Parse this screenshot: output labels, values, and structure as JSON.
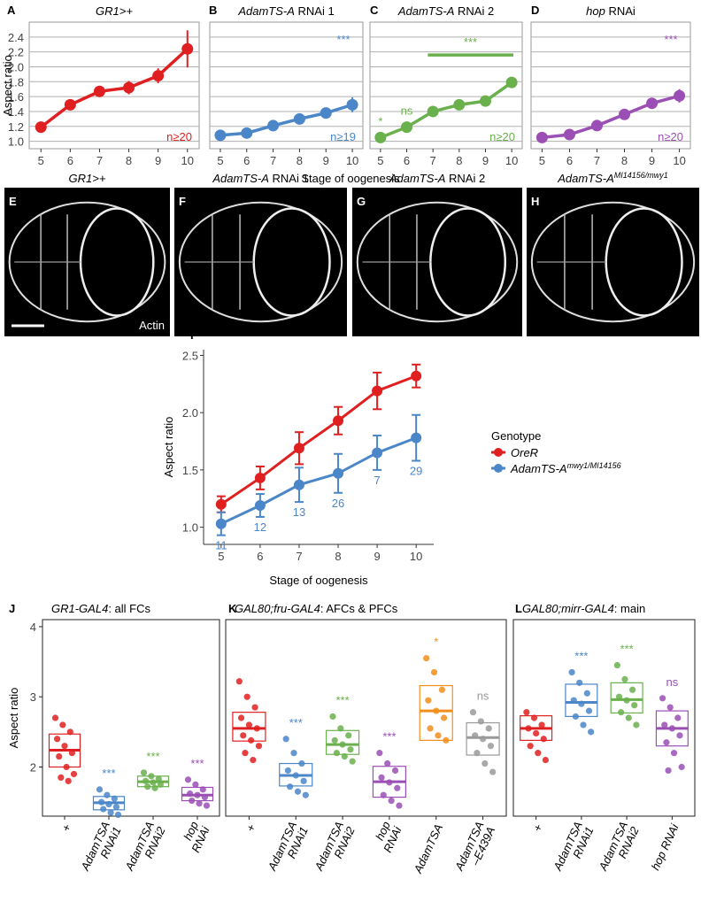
{
  "chart_data": [
    {
      "type": "line",
      "letter": "A",
      "title": [
        {
          "text": "GR1>+",
          "italic": true
        }
      ],
      "ylabel": "Aspect ratio",
      "xlabel": "Stage of oogenesis",
      "x": [
        5,
        6,
        7,
        8,
        9,
        10
      ],
      "xlim": [
        4.6,
        10.4
      ],
      "xticks": [
        5,
        6,
        7,
        8,
        9,
        10
      ],
      "ylim": [
        0.9,
        2.6
      ],
      "yticks": [
        {
          "value": 1,
          "label": "1.0"
        },
        1.2,
        1.4,
        1.6,
        1.8,
        {
          "value": 2,
          "label": "2.0"
        },
        2.2,
        2.4
      ],
      "grid": true,
      "series": [
        {
          "color": "#e02020",
          "values": [
            1.19,
            1.49,
            1.67,
            1.72,
            1.88,
            2.24
          ],
          "errors": [
            0.06,
            0.07,
            0.07,
            0.09,
            0.1,
            0.25
          ]
        }
      ],
      "n_label": "n≥20"
    },
    {
      "type": "line",
      "letter": "B",
      "title": [
        {
          "text": "AdamTS-A",
          "italic": true
        },
        {
          "text": " RNAi 1"
        }
      ],
      "x": [
        5,
        6,
        7,
        8,
        9,
        10
      ],
      "xlim": [
        4.6,
        10.4
      ],
      "xticks": [
        5,
        6,
        7,
        8,
        9,
        10
      ],
      "ylim": [
        0.9,
        2.6
      ],
      "yticks": [
        1,
        1.2,
        1.4,
        1.6,
        1.8,
        2,
        2.2,
        2.4
      ],
      "grid": true,
      "series": [
        {
          "color": "#4a86c8",
          "values": [
            1.08,
            1.11,
            1.21,
            1.3,
            1.38,
            1.49
          ],
          "errors": [
            0.03,
            0.03,
            0.05,
            0.07,
            0.06,
            0.1
          ]
        }
      ],
      "sig": "***",
      "n_label": "n≥19"
    },
    {
      "type": "line",
      "letter": "C",
      "title": [
        {
          "text": "AdamTS-A",
          "italic": true
        },
        {
          "text": " RNAi 2"
        }
      ],
      "x": [
        5,
        6,
        7,
        8,
        9,
        10
      ],
      "xlim": [
        4.6,
        10.4
      ],
      "xticks": [
        5,
        6,
        7,
        8,
        9,
        10
      ],
      "ylim": [
        0.9,
        2.6
      ],
      "yticks": [
        1,
        1.2,
        1.4,
        1.6,
        1.8,
        2,
        2.2,
        2.4
      ],
      "grid": true,
      "series": [
        {
          "color": "#6ab04c",
          "values": [
            1.05,
            1.19,
            1.4,
            1.49,
            1.54,
            1.79
          ],
          "errors": [
            0.03,
            0.05,
            0.04,
            0.04,
            0.04,
            0.05
          ]
        }
      ],
      "point_labels": [
        "*",
        "ns",
        null,
        null,
        null,
        null
      ],
      "sig": "***",
      "sig_bar": true,
      "n_label": "n≥20"
    },
    {
      "type": "line",
      "letter": "D",
      "title": [
        {
          "text": "hop",
          "italic": true
        },
        {
          "text": " RNAi"
        }
      ],
      "x": [
        5,
        6,
        7,
        8,
        9,
        10
      ],
      "xlim": [
        4.6,
        10.4
      ],
      "xticks": [
        5,
        6,
        7,
        8,
        9,
        10
      ],
      "ylim": [
        0.9,
        2.6
      ],
      "yticks": [
        1,
        1.2,
        1.4,
        1.6,
        1.8,
        2,
        2.2,
        2.4
      ],
      "grid": true,
      "series": [
        {
          "color": "#9b4fb5",
          "values": [
            1.05,
            1.09,
            1.21,
            1.36,
            1.51,
            1.61
          ],
          "errors": [
            0.05,
            0.05,
            0.05,
            0.06,
            0.07,
            0.09
          ]
        }
      ],
      "sig": "***",
      "n_label": "n≥20"
    },
    {
      "type": "line",
      "letter": "I",
      "ylabel": "Aspect ratio",
      "xlabel": "Stage of oogenesis",
      "x": [
        5,
        6,
        7,
        8,
        9,
        10
      ],
      "xlim": [
        4.55,
        10.45
      ],
      "xticks": [
        5,
        6,
        7,
        8,
        9,
        10
      ],
      "ylim": [
        0.85,
        2.55
      ],
      "yticks": [
        {
          "value": 1,
          "label": "1.0"
        },
        1.5,
        {
          "value": 2,
          "label": "2.0"
        },
        2.5
      ],
      "grid": false,
      "legend_title": "Genotype",
      "series": [
        {
          "name": "OreR",
          "color": "#e02020",
          "values": [
            1.2,
            1.43,
            1.69,
            1.93,
            2.19,
            2.32
          ],
          "errors": [
            0.07,
            0.1,
            0.14,
            0.12,
            0.16,
            0.1
          ]
        },
        {
          "name": "AdamTS-A",
          "name_sup": "mwy1/MI14156",
          "color": "#4a86c8",
          "values": [
            1.03,
            1.19,
            1.37,
            1.47,
            1.65,
            1.78
          ],
          "errors": [
            0.1,
            0.1,
            0.15,
            0.17,
            0.15,
            0.2
          ],
          "n_labels": [
            11,
            12,
            13,
            26,
            7,
            29
          ]
        }
      ]
    },
    {
      "type": "box",
      "letter": "J",
      "title": [
        {
          "text": "GR1-GAL4",
          "italic": true
        },
        {
          "text": ": all FCs"
        }
      ],
      "ylabel": "Aspect ratio",
      "ylim": [
        1.3,
        4.1
      ],
      "yticks": [
        2,
        3,
        4
      ],
      "categories": [
        [
          "+"
        ],
        [
          "AdamTSA",
          "RNAi1"
        ],
        [
          "AdamTSA",
          "RNAi2"
        ],
        [
          "hop",
          "RNAi"
        ]
      ],
      "colors": [
        "#e02020",
        "#4a86c8",
        "#6ab04c",
        "#9b4fb5"
      ],
      "boxes": [
        {
          "median": 2.24,
          "low": 2.0,
          "high": 2.47
        },
        {
          "median": 1.49,
          "low": 1.39,
          "high": 1.58
        },
        {
          "median": 1.79,
          "low": 1.72,
          "high": 1.87
        },
        {
          "median": 1.6,
          "low": 1.52,
          "high": 1.71
        }
      ],
      "points": [
        [
          2.7,
          2.6,
          2.5,
          2.4,
          2.3,
          2.2,
          2.15,
          2.0,
          1.9,
          1.85,
          1.8
        ],
        [
          1.68,
          1.6,
          1.55,
          1.5,
          1.47,
          1.43,
          1.4,
          1.35,
          1.32
        ],
        [
          1.92,
          1.87,
          1.83,
          1.8,
          1.78,
          1.75,
          1.72,
          1.7
        ],
        [
          1.82,
          1.75,
          1.68,
          1.62,
          1.6,
          1.57,
          1.52,
          1.48,
          1.45
        ]
      ],
      "sig_labels": [
        null,
        "***",
        "***",
        "***"
      ]
    },
    {
      "type": "box",
      "letter": "K",
      "title": [
        {
          "text": "GAL80;fru-GAL4",
          "italic": true
        },
        {
          "text": ": AFCs & PFCs"
        }
      ],
      "ylim": [
        1.3,
        4.1
      ],
      "categories": [
        [
          "+"
        ],
        [
          "AdamTSA",
          "RNAi1"
        ],
        [
          "AdamTSA",
          "RNAi2"
        ],
        [
          "hop",
          "RNAi"
        ],
        [
          "AdamTSA"
        ],
        [
          "AdamTSA",
          "–E439A"
        ]
      ],
      "colors": [
        "#e02020",
        "#4a86c8",
        "#6ab04c",
        "#9b4fb5",
        "#f28e1c",
        "#9a9a9a"
      ],
      "boxes": [
        {
          "median": 2.55,
          "low": 2.37,
          "high": 2.78
        },
        {
          "median": 1.88,
          "low": 1.73,
          "high": 2.05
        },
        {
          "median": 2.32,
          "low": 2.18,
          "high": 2.52
        },
        {
          "median": 1.79,
          "low": 1.57,
          "high": 2.01
        },
        {
          "median": 2.8,
          "low": 2.38,
          "high": 3.16
        },
        {
          "median": 2.42,
          "low": 2.17,
          "high": 2.63
        }
      ],
      "points": [
        [
          3.22,
          3.0,
          2.85,
          2.7,
          2.6,
          2.55,
          2.45,
          2.38,
          2.3,
          2.2,
          2.1
        ],
        [
          2.4,
          2.2,
          2.05,
          1.95,
          1.88,
          1.8,
          1.72,
          1.65,
          1.6
        ],
        [
          2.72,
          2.55,
          2.45,
          2.38,
          2.32,
          2.25,
          2.2,
          2.15,
          2.08
        ],
        [
          2.2,
          2.05,
          1.95,
          1.85,
          1.78,
          1.7,
          1.6,
          1.52,
          1.45
        ],
        [
          3.55,
          3.35,
          3.1,
          2.95,
          2.8,
          2.7,
          2.55,
          2.45,
          2.38
        ],
        [
          2.78,
          2.65,
          2.55,
          2.45,
          2.4,
          2.3,
          2.2,
          2.05,
          1.93
        ]
      ],
      "sig_labels": [
        null,
        "***",
        "***",
        "***",
        "*",
        "ns"
      ]
    },
    {
      "type": "box",
      "letter": "L",
      "title": [
        {
          "text": "GAL80;mirr-GAL4",
          "italic": true
        },
        {
          "text": ": main"
        }
      ],
      "ylim": [
        1.3,
        4.1
      ],
      "categories": [
        [
          "+"
        ],
        [
          "AdamTSA",
          "RNAi1"
        ],
        [
          "AdamTSA",
          "RNAi2"
        ],
        [
          "hop RNAi"
        ]
      ],
      "colors": [
        "#e02020",
        "#4a86c8",
        "#6ab04c",
        "#9b4fb5"
      ],
      "boxes": [
        {
          "median": 2.55,
          "low": 2.38,
          "high": 2.73
        },
        {
          "median": 2.92,
          "low": 2.72,
          "high": 3.18
        },
        {
          "median": 2.96,
          "low": 2.77,
          "high": 3.2
        },
        {
          "median": 2.55,
          "low": 2.3,
          "high": 2.8
        }
      ],
      "points": [
        [
          2.78,
          2.7,
          2.6,
          2.55,
          2.48,
          2.4,
          2.3,
          2.2,
          2.1
        ],
        [
          3.35,
          3.2,
          3.05,
          2.95,
          2.9,
          2.8,
          2.72,
          2.6,
          2.5
        ],
        [
          3.45,
          3.25,
          3.1,
          3.0,
          2.95,
          2.88,
          2.78,
          2.7,
          2.6
        ],
        [
          2.98,
          2.85,
          2.7,
          2.6,
          2.55,
          2.45,
          2.35,
          2.2,
          2.0,
          1.95
        ]
      ],
      "sig_labels": [
        null,
        "***",
        "***",
        "ns"
      ]
    }
  ],
  "images": [
    {
      "letter": "E",
      "label": [
        {
          "text": "GR1>+",
          "italic": true
        }
      ]
    },
    {
      "letter": "F",
      "label": [
        {
          "text": "AdamTS-A",
          "italic": true
        },
        {
          "text": " RNAi 1"
        }
      ]
    },
    {
      "letter": "G",
      "label": [
        {
          "text": "AdamTS-A",
          "italic": true
        },
        {
          "text": " RNAi 2"
        }
      ]
    },
    {
      "letter": "H",
      "label": [
        {
          "text": "AdamTS-A",
          "italic": true
        },
        {
          "text": "MI14156/mwy1",
          "italic": true,
          "sup": true
        }
      ]
    }
  ],
  "stain": "Actin"
}
